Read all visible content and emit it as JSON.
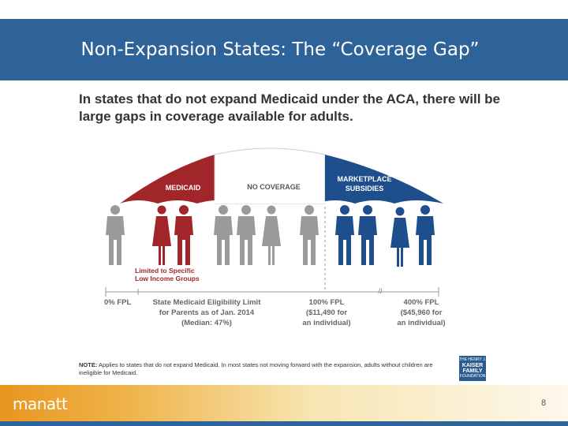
{
  "slide": {
    "title": "Non-Expansion States: The “Coverage Gap”",
    "heading": "In states that do not expand Medicaid under the ACA, there will be large gaps in coverage available for adults.",
    "page_number": "8",
    "brand": "manatt"
  },
  "diagram": {
    "regions": {
      "medicaid": "MEDICAID",
      "no_coverage": "NO COVERAGE",
      "marketplace_line1": "MARKETPLACE",
      "marketplace_line2": "SUBSIDIES"
    },
    "limited_line1": "Limited to Specific",
    "limited_line2": "Low Income Groups",
    "axis": {
      "fpl0": "0% FPL",
      "state_limit_line1": "State Medicaid Eligibility Limit",
      "state_limit_line2": "for Parents as of Jan. 2014",
      "state_limit_line3": "(Median: 47%)",
      "fpl100_line1": "100% FPL",
      "fpl100_line2": "($11,490 for",
      "fpl100_line3": "an individual)",
      "fpl400_line1": "400% FPL",
      "fpl400_line2": "($45,960 for",
      "fpl400_line3": "an individual)",
      "break_mark": "//"
    },
    "colors": {
      "medicaid": "#a0262a",
      "gray": "#9a9a9a",
      "marketplace": "#1f4e8c"
    }
  },
  "note": {
    "label": "NOTE:",
    "text": "Applies to states that do not expand Medicaid. In most states not moving forward with the expansion, adults without children are ineligible for Medicaid."
  },
  "logo": {
    "line1": "THE HENRY J.",
    "line2": "KAISER",
    "line3": "FAMILY",
    "line4": "FOUNDATION"
  }
}
